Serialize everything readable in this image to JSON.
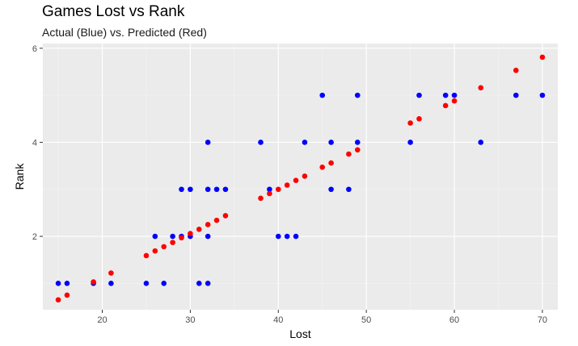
{
  "chart_data": {
    "type": "scatter",
    "title": "Games Lost vs Rank",
    "subtitle": "Actual (Blue) vs. Predicted (Red)",
    "xlabel": "Lost",
    "ylabel": "Rank",
    "xlim": [
      13.25,
      71.75
    ],
    "ylim": [
      0.44,
      6.1
    ],
    "x_ticks": [
      20,
      30,
      40,
      50,
      60,
      70
    ],
    "y_ticks": [
      2,
      4,
      6
    ],
    "grid": true,
    "legend": "none",
    "colors": {
      "panel": "#ebebeb",
      "grid_major": "#ffffff",
      "grid_minor": "#f4f4f4",
      "tick": "#333333",
      "actual": "#0000ff",
      "predicted": "#ff0000"
    },
    "series": [
      {
        "color": "#0000ff",
        "points": [
          [
            15,
            1
          ],
          [
            16,
            1
          ],
          [
            19,
            1
          ],
          [
            21,
            1
          ],
          [
            25,
            1
          ],
          [
            26,
            2
          ],
          [
            27,
            1
          ],
          [
            28,
            2
          ],
          [
            29,
            2
          ],
          [
            29,
            3
          ],
          [
            30,
            2
          ],
          [
            30,
            3
          ],
          [
            31,
            1
          ],
          [
            32,
            1
          ],
          [
            32,
            2
          ],
          [
            32,
            3
          ],
          [
            32,
            4
          ],
          [
            33,
            3
          ],
          [
            34,
            3
          ],
          [
            38,
            4
          ],
          [
            39,
            3
          ],
          [
            40,
            2
          ],
          [
            41,
            2
          ],
          [
            42,
            2
          ],
          [
            43,
            4
          ],
          [
            45,
            5
          ],
          [
            46,
            3
          ],
          [
            46,
            4
          ],
          [
            48,
            3
          ],
          [
            49,
            4
          ],
          [
            49,
            5
          ],
          [
            55,
            4
          ],
          [
            56,
            5
          ],
          [
            59,
            5
          ],
          [
            60,
            5
          ],
          [
            63,
            4
          ],
          [
            67,
            5
          ],
          [
            70,
            5
          ]
        ]
      },
      {
        "color": "#ff0000",
        "points": [
          [
            15,
            0.65
          ],
          [
            16,
            0.75
          ],
          [
            19,
            1.03
          ],
          [
            21,
            1.22
          ],
          [
            25,
            1.59
          ],
          [
            26,
            1.69
          ],
          [
            27,
            1.78
          ],
          [
            28,
            1.87
          ],
          [
            29,
            1.97
          ],
          [
            30,
            2.06
          ],
          [
            31,
            2.15
          ],
          [
            32,
            2.25
          ],
          [
            33,
            2.34
          ],
          [
            34,
            2.44
          ],
          [
            38,
            2.81
          ],
          [
            39,
            2.91
          ],
          [
            40,
            3.0
          ],
          [
            41,
            3.09
          ],
          [
            42,
            3.19
          ],
          [
            43,
            3.28
          ],
          [
            45,
            3.47
          ],
          [
            46,
            3.56
          ],
          [
            48,
            3.75
          ],
          [
            49,
            3.84
          ],
          [
            55,
            4.41
          ],
          [
            56,
            4.5
          ],
          [
            59,
            4.78
          ],
          [
            60,
            4.88
          ],
          [
            63,
            5.16
          ],
          [
            67,
            5.53
          ],
          [
            70,
            5.81
          ]
        ]
      }
    ]
  }
}
